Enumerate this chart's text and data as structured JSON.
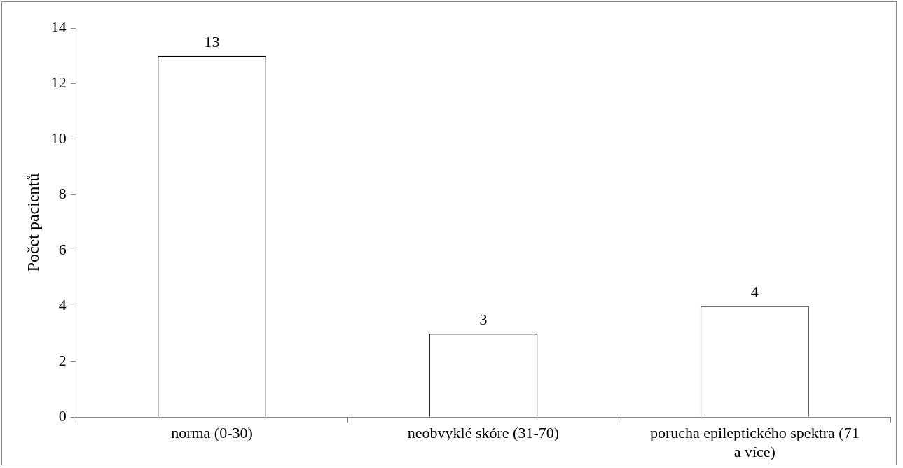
{
  "chart_data": {
    "type": "bar",
    "ylabel": "Počet pacientů",
    "categories": [
      "norma (0-30)",
      "neobvyklé skóre (31-70)",
      "porucha epileptického spektra (71 a více)"
    ],
    "values": [
      13,
      3,
      4
    ],
    "color": "#ffffff",
    "ylim": [
      0,
      14
    ],
    "yticks": [
      0,
      2,
      4,
      6,
      8,
      10,
      12,
      14
    ],
    "grid": false,
    "legend": false,
    "data_labels": true
  }
}
